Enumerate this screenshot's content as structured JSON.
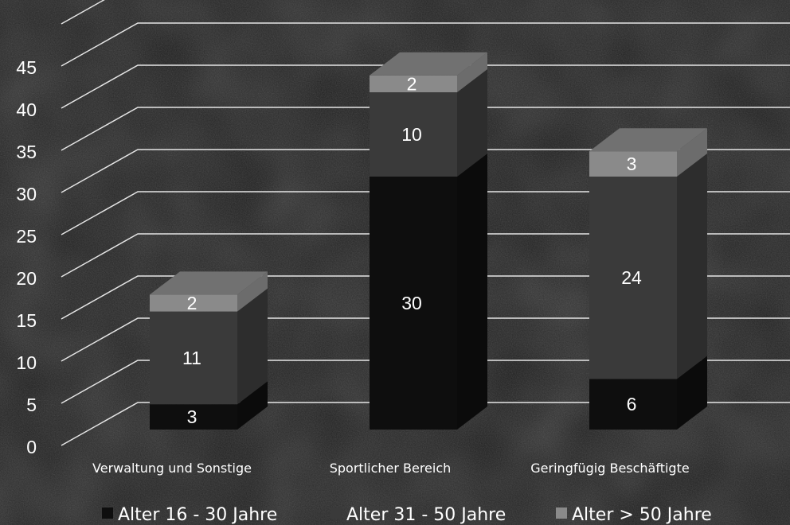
{
  "chart_data": {
    "type": "bar",
    "stacked": true,
    "style": "3d",
    "categories": [
      "Verwaltung und Sonstige",
      "Sportlicher Bereich",
      "Geringfügig Beschäftigte"
    ],
    "series": [
      {
        "name": "Alter 16 - 30 Jahre",
        "values": [
          3,
          30,
          6
        ],
        "color": "#0e0e0e"
      },
      {
        "name": "Alter 31 - 50 Jahre",
        "values": [
          11,
          10,
          24
        ],
        "color": "#3a3a3a"
      },
      {
        "name": "Alter > 50 Jahre",
        "values": [
          2,
          2,
          3
        ],
        "color": "#8a8a8a"
      }
    ],
    "y_ticks": [
      "0",
      "5",
      "10",
      "15",
      "20",
      "25",
      "30",
      "35",
      "40",
      "45"
    ],
    "ylim": [
      0,
      50
    ],
    "grid": true,
    "legend_position": "bottom",
    "title": "",
    "xlabel": "",
    "ylabel": ""
  },
  "colors": {
    "background": "#1c1c1c",
    "gridline": "#e6e6e6",
    "text": "#ffffff"
  }
}
